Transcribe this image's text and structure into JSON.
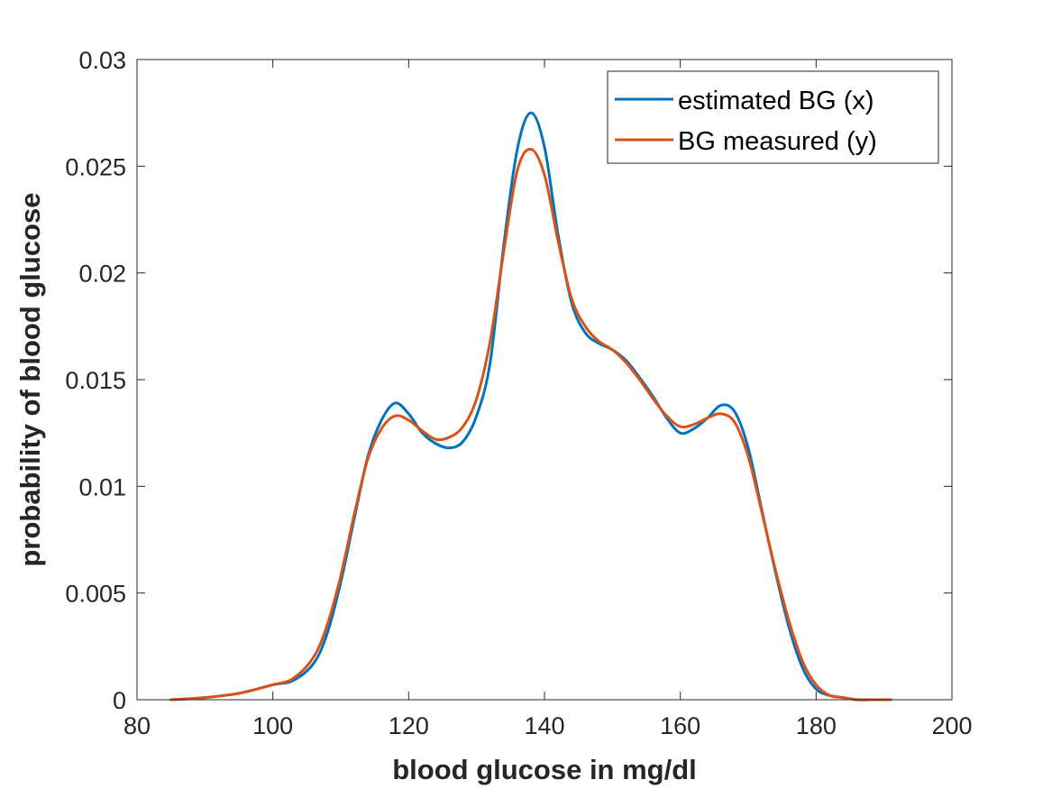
{
  "chart_data": {
    "type": "line",
    "title": "",
    "xlabel": "blood glucose in mg/dl",
    "ylabel": "probability of blood glucose",
    "xlim": [
      80,
      200
    ],
    "ylim": [
      0,
      0.03
    ],
    "xticks": [
      80,
      100,
      120,
      140,
      160,
      180,
      200
    ],
    "xtick_labels": [
      "80",
      "100",
      "120",
      "140",
      "160",
      "180",
      "200"
    ],
    "yticks": [
      0,
      0.005,
      0.01,
      0.015,
      0.02,
      0.025,
      0.03
    ],
    "ytick_labels": [
      "0",
      "0.005",
      "0.01",
      "0.015",
      "0.02",
      "0.025",
      "0.03"
    ],
    "grid": false,
    "legend_position": "top-right",
    "series": [
      {
        "name": "estimated BG (x)",
        "color": "#0072BD",
        "x": [
          85,
          90,
          95,
          100,
          103,
          106,
          108,
          110,
          112,
          114,
          116,
          118,
          120,
          122,
          124,
          126,
          128,
          130,
          132,
          134,
          136,
          138,
          140,
          142,
          144,
          146,
          148,
          150,
          152,
          154,
          156,
          158,
          160,
          162,
          164,
          166,
          168,
          170,
          172,
          174,
          176,
          178,
          180,
          182,
          184,
          186,
          188,
          191
        ],
        "y": [
          0.0,
          0.0001,
          0.0003,
          0.0007,
          0.0009,
          0.0017,
          0.0031,
          0.0055,
          0.0085,
          0.0114,
          0.0131,
          0.0139,
          0.0134,
          0.0125,
          0.012,
          0.0118,
          0.0121,
          0.0133,
          0.0158,
          0.0213,
          0.0258,
          0.0275,
          0.0259,
          0.0218,
          0.0186,
          0.0172,
          0.0167,
          0.0164,
          0.0159,
          0.0151,
          0.0142,
          0.0132,
          0.0125,
          0.0127,
          0.0132,
          0.0138,
          0.0135,
          0.0118,
          0.0089,
          0.006,
          0.0034,
          0.0015,
          0.0005,
          0.0002,
          0.0001,
          0.0,
          0.0,
          0.0
        ]
      },
      {
        "name": "BG measured (y)",
        "color": "#D95319",
        "x": [
          85,
          90,
          95,
          100,
          103,
          106,
          108,
          110,
          112,
          114,
          116,
          118,
          120,
          122,
          124,
          126,
          128,
          130,
          132,
          134,
          136,
          138,
          140,
          142,
          144,
          146,
          148,
          150,
          152,
          154,
          156,
          158,
          160,
          162,
          164,
          166,
          168,
          170,
          172,
          174,
          176,
          178,
          180,
          182,
          184,
          186,
          188,
          191
        ],
        "y": [
          0.0,
          0.0001,
          0.0003,
          0.0007,
          0.001,
          0.002,
          0.0035,
          0.0058,
          0.0087,
          0.0113,
          0.0127,
          0.0133,
          0.0131,
          0.0126,
          0.0122,
          0.0123,
          0.0128,
          0.0141,
          0.0168,
          0.021,
          0.0248,
          0.0258,
          0.0246,
          0.0215,
          0.0188,
          0.0175,
          0.0168,
          0.0164,
          0.0158,
          0.015,
          0.0141,
          0.0133,
          0.0128,
          0.0129,
          0.0132,
          0.0134,
          0.013,
          0.0114,
          0.0088,
          0.0061,
          0.0037,
          0.0018,
          0.0007,
          0.0002,
          0.0001,
          0.0,
          0.0,
          0.0
        ]
      }
    ]
  }
}
